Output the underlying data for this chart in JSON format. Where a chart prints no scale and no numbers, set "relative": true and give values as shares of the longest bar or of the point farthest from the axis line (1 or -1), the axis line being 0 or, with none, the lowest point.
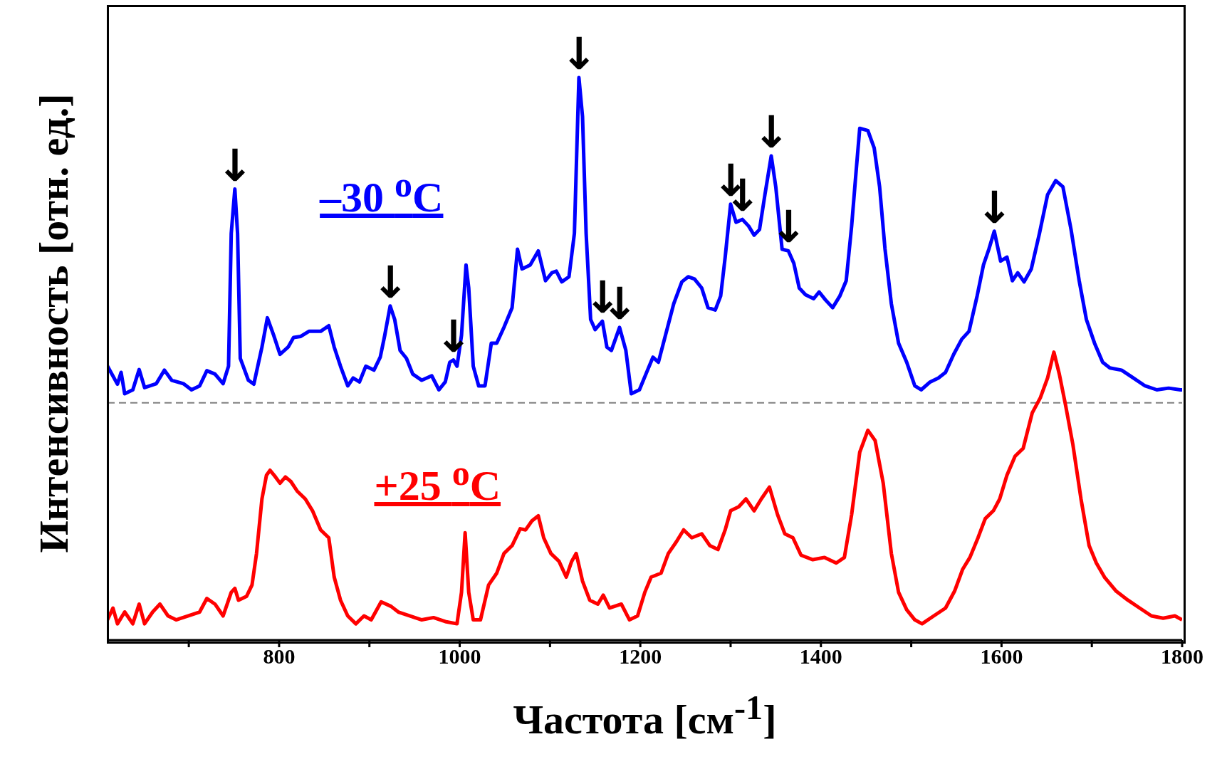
{
  "chart_data": {
    "type": "line",
    "relative": true,
    "xlabel": "Частота [см$^{-1}$]",
    "ylabel": "Интенсивность [отн. ед.]",
    "xlim": [
      610,
      1800
    ],
    "xticks": [
      {
        "value": 700,
        "label": null
      },
      800,
      {
        "value": 900,
        "label": null
      },
      1000,
      {
        "value": 1100,
        "label": null
      },
      1200,
      {
        "value": 1300,
        "label": null
      },
      1400,
      {
        "value": 1500,
        "label": null
      },
      1600,
      {
        "value": 1700,
        "label": null
      },
      1800
    ],
    "ref_lines": [
      {
        "axis": "y",
        "value": 0.422,
        "color": "#808080",
        "line_style": "dashed"
      }
    ],
    "annotations": [
      {
        "text": "↓",
        "x": 751,
        "y": 0.802
      },
      {
        "text": "↓",
        "x": 923,
        "y": 0.594
      },
      {
        "text": "↓",
        "x": 993,
        "y": 0.498
      },
      {
        "text": "↓",
        "x": 1132,
        "y": 1.0
      },
      {
        "text": "↓",
        "x": 1158,
        "y": 0.567
      },
      {
        "text": "↓",
        "x": 1177,
        "y": 0.556
      },
      {
        "text": "↓",
        "x": 1300,
        "y": 0.775
      },
      {
        "text": "↓",
        "x": 1313,
        "y": 0.748
      },
      {
        "text": "↓",
        "x": 1345,
        "y": 0.861
      },
      {
        "text": "↓",
        "x": 1364,
        "y": 0.692
      },
      {
        "text": "↓",
        "x": 1592,
        "y": 0.727
      }
    ],
    "series": [
      {
        "name": "–30 $^{o}$C",
        "color": "#0000ff",
        "x": [
          610,
          621,
          625,
          629,
          638,
          645,
          651,
          664,
          673,
          681,
          694,
          703,
          712,
          720,
          729,
          738,
          744,
          747,
          751,
          754,
          757,
          766,
          772,
          781,
          787,
          794,
          801,
          810,
          816,
          824,
          833,
          846,
          855,
          861,
          868,
          876,
          882,
          889,
          896,
          905,
          912,
          917,
          923,
          928,
          934,
          941,
          948,
          958,
          969,
          977,
          984,
          989,
          993,
          997,
          1002,
          1007,
          1010,
          1015,
          1021,
          1028,
          1035,
          1041,
          1049,
          1058,
          1064,
          1069,
          1078,
          1087,
          1095,
          1102,
          1107,
          1113,
          1121,
          1127,
          1132,
          1136,
          1140,
          1145,
          1150,
          1158,
          1163,
          1168,
          1177,
          1184,
          1190,
          1199,
          1208,
          1214,
          1220,
          1229,
          1237,
          1246,
          1253,
          1260,
          1268,
          1275,
          1283,
          1289,
          1294,
          1300,
          1306,
          1313,
          1320,
          1326,
          1332,
          1338,
          1345,
          1350,
          1357,
          1364,
          1370,
          1376,
          1383,
          1392,
          1398,
          1405,
          1413,
          1421,
          1428,
          1434,
          1439,
          1443,
          1452,
          1459,
          1465,
          1471,
          1478,
          1486,
          1495,
          1504,
          1511,
          1521,
          1530,
          1538,
          1547,
          1556,
          1564,
          1573,
          1580,
          1586,
          1592,
          1599,
          1606,
          1612,
          1618,
          1625,
          1633,
          1642,
          1651,
          1660,
          1668,
          1677,
          1686,
          1694,
          1703,
          1712,
          1720,
          1733,
          1746,
          1759,
          1772,
          1785,
          1798,
          1800
        ],
        "values": [
          0.487,
          0.455,
          0.476,
          0.438,
          0.445,
          0.481,
          0.449,
          0.456,
          0.48,
          0.462,
          0.456,
          0.445,
          0.452,
          0.479,
          0.473,
          0.456,
          0.487,
          0.723,
          0.802,
          0.723,
          0.501,
          0.462,
          0.455,
          0.521,
          0.573,
          0.542,
          0.508,
          0.521,
          0.538,
          0.54,
          0.549,
          0.549,
          0.559,
          0.521,
          0.487,
          0.452,
          0.466,
          0.459,
          0.487,
          0.48,
          0.503,
          0.542,
          0.594,
          0.57,
          0.515,
          0.501,
          0.473,
          0.462,
          0.47,
          0.445,
          0.459,
          0.494,
          0.498,
          0.487,
          0.542,
          0.667,
          0.626,
          0.487,
          0.452,
          0.452,
          0.528,
          0.528,
          0.556,
          0.591,
          0.695,
          0.66,
          0.667,
          0.692,
          0.639,
          0.653,
          0.656,
          0.637,
          0.646,
          0.723,
          1.0,
          0.931,
          0.723,
          0.57,
          0.552,
          0.567,
          0.521,
          0.515,
          0.556,
          0.515,
          0.438,
          0.445,
          0.48,
          0.503,
          0.494,
          0.549,
          0.598,
          0.637,
          0.646,
          0.642,
          0.626,
          0.591,
          0.587,
          0.612,
          0.681,
          0.775,
          0.743,
          0.748,
          0.736,
          0.72,
          0.73,
          0.792,
          0.861,
          0.806,
          0.695,
          0.692,
          0.67,
          0.626,
          0.614,
          0.607,
          0.619,
          0.605,
          0.591,
          0.612,
          0.639,
          0.736,
          0.834,
          0.91,
          0.906,
          0.875,
          0.806,
          0.695,
          0.598,
          0.528,
          0.494,
          0.452,
          0.445,
          0.459,
          0.466,
          0.476,
          0.508,
          0.535,
          0.549,
          0.612,
          0.667,
          0.695,
          0.727,
          0.674,
          0.681,
          0.639,
          0.653,
          0.637,
          0.66,
          0.723,
          0.792,
          0.817,
          0.806,
          0.73,
          0.639,
          0.57,
          0.528,
          0.494,
          0.484,
          0.48,
          0.466,
          0.452,
          0.445,
          0.448,
          0.445,
          0.445
        ]
      },
      {
        "name": "+25 $^{o}$C",
        "color": "#ff0000",
        "x": [
          610,
          616,
          621,
          629,
          638,
          645,
          651,
          660,
          668,
          677,
          686,
          699,
          712,
          720,
          729,
          738,
          747,
          751,
          755,
          764,
          770,
          775,
          781,
          786,
          790,
          796,
          801,
          807,
          813,
          820,
          829,
          837,
          846,
          855,
          861,
          868,
          876,
          885,
          894,
          902,
          913,
          924,
          932,
          945,
          958,
          971,
          984,
          997,
          1002,
          1006,
          1010,
          1015,
          1023,
          1032,
          1041,
          1049,
          1058,
          1067,
          1073,
          1080,
          1087,
          1093,
          1101,
          1110,
          1118,
          1124,
          1129,
          1136,
          1144,
          1153,
          1159,
          1166,
          1179,
          1188,
          1197,
          1205,
          1212,
          1223,
          1231,
          1240,
          1248,
          1257,
          1268,
          1277,
          1286,
          1294,
          1300,
          1309,
          1317,
          1326,
          1334,
          1343,
          1352,
          1360,
          1369,
          1378,
          1391,
          1404,
          1417,
          1426,
          1434,
          1443,
          1452,
          1460,
          1469,
          1478,
          1486,
          1495,
          1504,
          1512,
          1525,
          1538,
          1548,
          1557,
          1565,
          1574,
          1582,
          1591,
          1598,
          1606,
          1615,
          1624,
          1634,
          1643,
          1651,
          1658,
          1664,
          1671,
          1679,
          1688,
          1697,
          1705,
          1714,
          1727,
          1740,
          1753,
          1766,
          1779,
          1792,
          1800
        ],
        "values": [
          0.036,
          0.057,
          0.029,
          0.05,
          0.029,
          0.064,
          0.029,
          0.05,
          0.064,
          0.043,
          0.036,
          0.043,
          0.05,
          0.074,
          0.064,
          0.043,
          0.085,
          0.092,
          0.071,
          0.078,
          0.098,
          0.154,
          0.251,
          0.293,
          0.302,
          0.29,
          0.279,
          0.29,
          0.282,
          0.265,
          0.251,
          0.23,
          0.196,
          0.182,
          0.112,
          0.071,
          0.043,
          0.029,
          0.043,
          0.036,
          0.068,
          0.06,
          0.05,
          0.043,
          0.036,
          0.04,
          0.033,
          0.029,
          0.085,
          0.191,
          0.085,
          0.036,
          0.036,
          0.098,
          0.119,
          0.154,
          0.168,
          0.198,
          0.196,
          0.212,
          0.221,
          0.182,
          0.154,
          0.14,
          0.112,
          0.14,
          0.154,
          0.105,
          0.071,
          0.064,
          0.08,
          0.057,
          0.064,
          0.036,
          0.043,
          0.085,
          0.112,
          0.119,
          0.154,
          0.175,
          0.196,
          0.182,
          0.189,
          0.168,
          0.161,
          0.196,
          0.23,
          0.237,
          0.251,
          0.23,
          0.251,
          0.272,
          0.223,
          0.189,
          0.182,
          0.151,
          0.143,
          0.147,
          0.137,
          0.147,
          0.223,
          0.334,
          0.373,
          0.355,
          0.279,
          0.154,
          0.085,
          0.054,
          0.036,
          0.029,
          0.043,
          0.057,
          0.087,
          0.126,
          0.147,
          0.182,
          0.216,
          0.23,
          0.251,
          0.293,
          0.327,
          0.341,
          0.404,
          0.431,
          0.466,
          0.512,
          0.473,
          0.417,
          0.348,
          0.251,
          0.168,
          0.137,
          0.112,
          0.087,
          0.071,
          0.057,
          0.043,
          0.039,
          0.043,
          0.036
        ]
      }
    ]
  }
}
